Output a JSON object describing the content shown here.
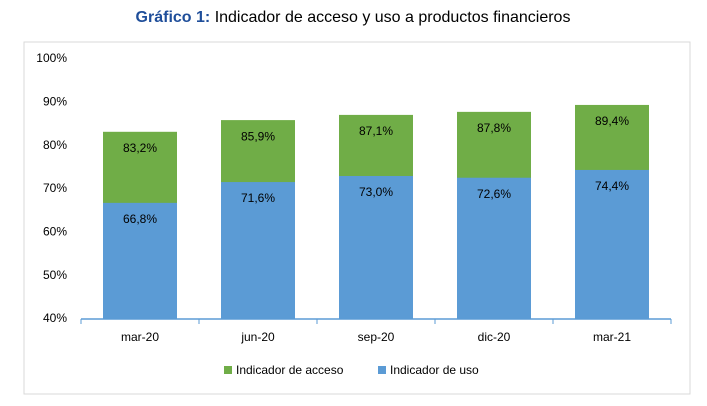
{
  "chart_data": {
    "type": "overlap-bar",
    "title_label": "Gráfico 1:",
    "title": "Indicador de acceso y uso a productos financieros",
    "categories": [
      "mar-20",
      "jun-20",
      "sep-20",
      "dic-20",
      "mar-21"
    ],
    "series": [
      {
        "name": "Indicador de acceso",
        "color": "#70ad47",
        "values": [
          83.2,
          85.9,
          87.1,
          87.8,
          89.4
        ],
        "value_labels": [
          "83,2%",
          "85,9%",
          "87,1%",
          "87,8%",
          "89,4%"
        ]
      },
      {
        "name": "Indicador de uso",
        "color": "#5b9bd5",
        "values": [
          66.8,
          71.6,
          73.0,
          72.6,
          74.4
        ],
        "value_labels": [
          "66,8%",
          "71,6%",
          "73,0%",
          "72,6%",
          "74,4%"
        ]
      }
    ],
    "ylim": [
      40,
      100
    ],
    "yticks": [
      {
        "value": 40,
        "label": "40%"
      },
      {
        "value": 50,
        "label": "50%"
      },
      {
        "value": 60,
        "label": "60%"
      },
      {
        "value": 70,
        "label": "70%"
      },
      {
        "value": 80,
        "label": "80%"
      },
      {
        "value": 90,
        "label": "90%"
      },
      {
        "value": 100,
        "label": "100%"
      }
    ],
    "grid": false,
    "legend": "bottom"
  }
}
